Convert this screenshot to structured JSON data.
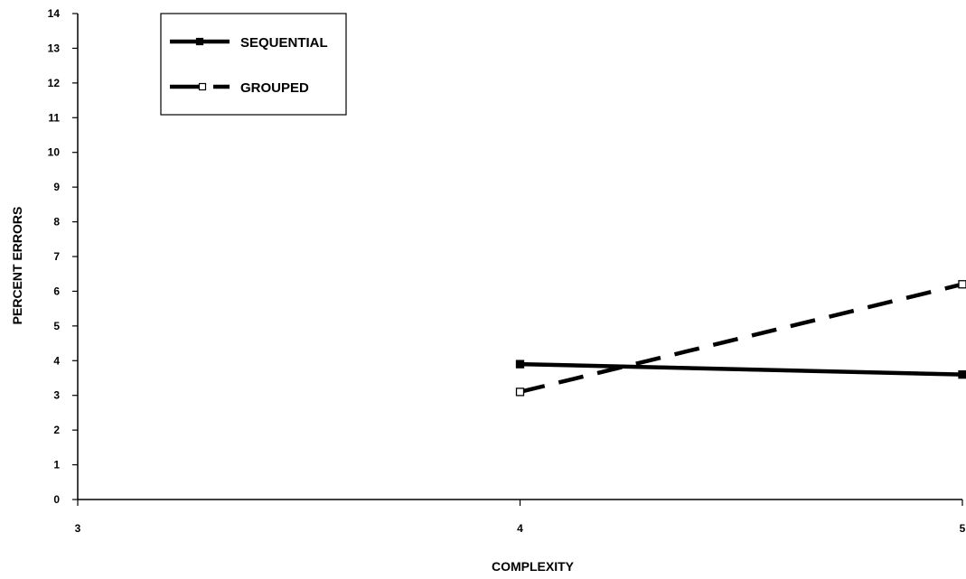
{
  "chart_data": {
    "type": "line",
    "title": "",
    "xlabel": "COMPLEXITY",
    "ylabel": "PERCENT ERRORS",
    "x": [
      4,
      5
    ],
    "xlim": [
      3,
      5
    ],
    "ylim": [
      0,
      14
    ],
    "xticks": [
      "3",
      "4",
      "5"
    ],
    "yticks": [
      "0",
      "1",
      "2",
      "3",
      "4",
      "5",
      "6",
      "7",
      "8",
      "9",
      "10",
      "11",
      "12",
      "13",
      "14"
    ],
    "grid": false,
    "legend_position": "top-left",
    "series": [
      {
        "name": "SEQUENTIAL",
        "values": [
          3.9,
          3.6
        ],
        "line_style": "solid",
        "marker": "filled-square",
        "color": "#000000"
      },
      {
        "name": "GROUPED",
        "values": [
          3.1,
          6.2
        ],
        "line_style": "dashed",
        "marker": "open-square",
        "color": "#000000"
      }
    ]
  }
}
